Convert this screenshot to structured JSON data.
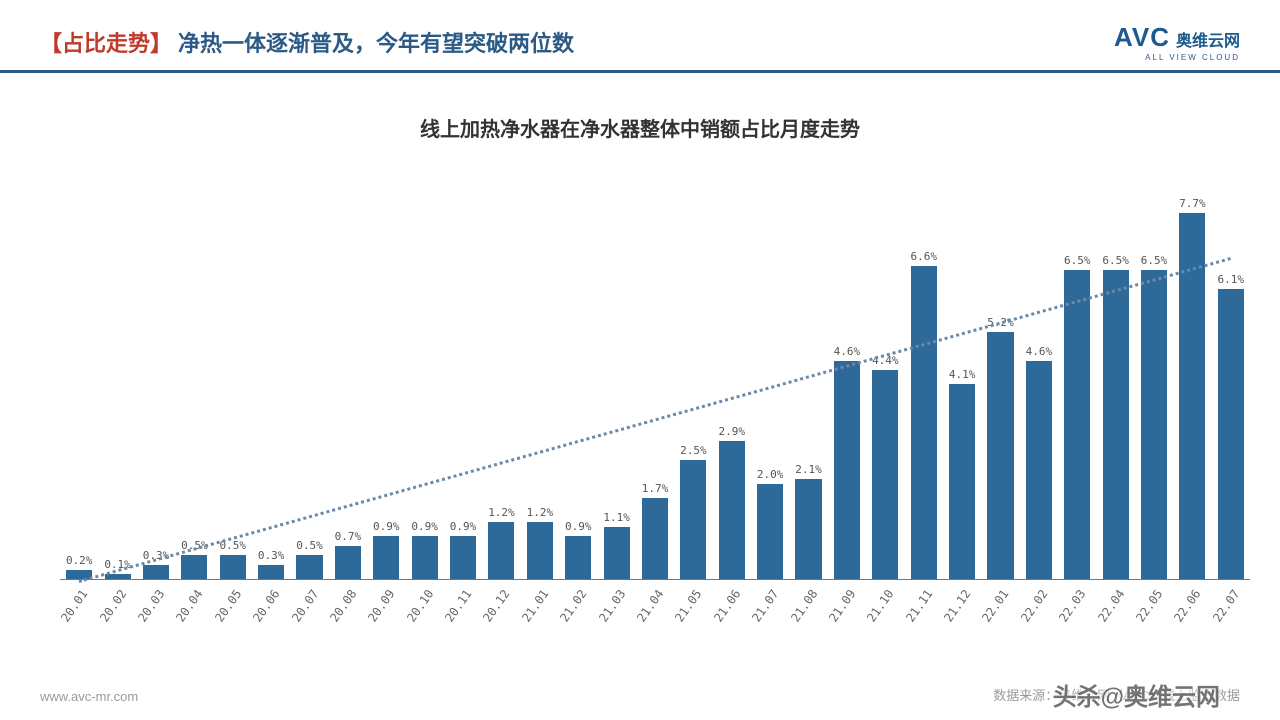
{
  "header": {
    "tag": "【占比走势】",
    "title": "净热一体逐渐普及，今年有望突破两位数",
    "tag_color": "#c0392b",
    "title_color": "#2c5a86",
    "underline_color": "#2c5a86",
    "font_size": 22
  },
  "logo": {
    "avc": "AVC",
    "cn": "奥维云网",
    "sub": "ALL VIEW CLOUD",
    "color": "#1d5a8e",
    "avc_size": 26,
    "cn_size": 16
  },
  "chart": {
    "title": "线上加热净水器在净水器整体中销额占比月度走势",
    "title_color": "#333333",
    "title_fontsize": 20,
    "type": "bar",
    "categories": [
      "20.01",
      "20.02",
      "20.03",
      "20.04",
      "20.05",
      "20.06",
      "20.07",
      "20.08",
      "20.09",
      "20.10",
      "20.11",
      "20.12",
      "21.01",
      "21.02",
      "21.03",
      "21.04",
      "21.05",
      "21.06",
      "21.07",
      "21.08",
      "21.09",
      "21.10",
      "21.11",
      "21.12",
      "22.01",
      "22.02",
      "22.03",
      "22.04",
      "22.05",
      "22.06",
      "22.07"
    ],
    "values": [
      0.2,
      0.1,
      0.3,
      0.5,
      0.5,
      0.3,
      0.5,
      0.7,
      0.9,
      0.9,
      0.9,
      1.2,
      1.2,
      0.9,
      1.1,
      1.7,
      2.5,
      2.9,
      2.0,
      2.1,
      4.6,
      4.4,
      6.6,
      4.1,
      5.2,
      4.6,
      6.5,
      6.5,
      6.5,
      7.7,
      6.1
    ],
    "value_labels": [
      "0.2%",
      "0.1%",
      "0.3%",
      "0.5%",
      "0.5%",
      "0.3%",
      "0.5%",
      "0.7%",
      "0.9%",
      "0.9%",
      "0.9%",
      "1.2%",
      "1.2%",
      "0.9%",
      "1.1%",
      "1.7%",
      "2.5%",
      "2.9%",
      "2.0%",
      "2.1%",
      "4.6%",
      "4.4%",
      "6.6%",
      "4.1%",
      "5.2%",
      "4.6%",
      "6.5%",
      "6.5%",
      "6.5%",
      "7.7%",
      "6.1%"
    ],
    "y_max": 8.0,
    "bar_color": "#2d6a99",
    "bar_fill_ratio": 0.68,
    "label_fontsize": 11,
    "label_color": "#555555",
    "xaxis_fontsize": 12,
    "xaxis_color": "#666666",
    "trendline": {
      "color": "#6b89a8",
      "start_value": 0.0,
      "end_value": 6.8,
      "dash": "3px dotted"
    }
  },
  "footer": {
    "left": "www.avc-mr.com",
    "right": "数据来源：奥维云网（AVC）线上监测数据",
    "fontsize": 13
  },
  "watermark": {
    "text": "头杀@奥维云网",
    "fontsize": 24
  }
}
